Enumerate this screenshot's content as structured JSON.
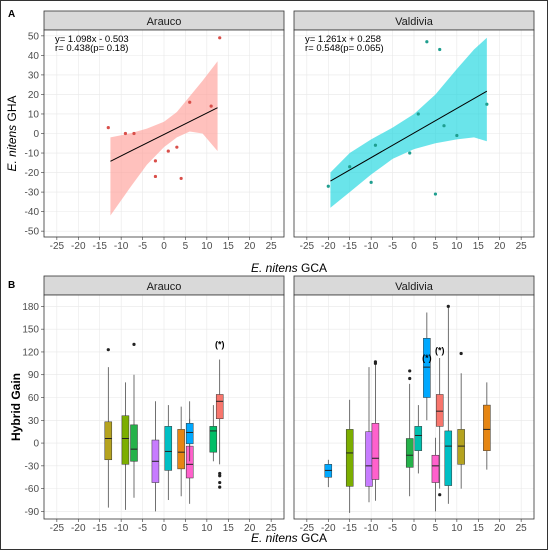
{
  "figure": {
    "panel_labels": [
      "A",
      "B"
    ]
  },
  "colors": {
    "strip_bg": "#d9d9d9",
    "panel_border": "#333333",
    "grid": "#e8e8e8",
    "ribbon_arauco": "#ff9f9a",
    "ribbon_valdivia": "#1ad6df",
    "pt_arauco": "#d94f4a",
    "pt_valdivia": "#1f9e8f"
  },
  "chart_data": [
    {
      "type": "scatter",
      "panel": "A",
      "xlabel_italic": "E. nitens",
      "xlabel_rest": " GCA",
      "ylabel_italic": "E. nitens",
      "ylabel_rest": " GHA",
      "xlim": [
        -28,
        28
      ],
      "ylim": [
        -53,
        53
      ],
      "xticks": [
        -25,
        -20,
        -15,
        -10,
        -5,
        0,
        5,
        10,
        15,
        20,
        25
      ],
      "yticks": [
        -50,
        -40,
        -30,
        -20,
        -10,
        0,
        10,
        20,
        30,
        40,
        50
      ],
      "facets": [
        {
          "name": "Arauco",
          "eq1": "y= 1.098x - 0.503",
          "eq2": "r= 0.438(p= 0.18)",
          "slope": 1.098,
          "intercept": -0.503,
          "xrange": [
            -12.5,
            12.5
          ],
          "band_upper": [
            [
              -12.5,
              -2
            ],
            [
              -8,
              0
            ],
            [
              -4,
              2.5
            ],
            [
              0,
              6
            ],
            [
              3,
              11
            ],
            [
              6,
              19
            ],
            [
              9,
              27
            ],
            [
              12.5,
              37
            ]
          ],
          "band_lower": [
            [
              -12.5,
              -42
            ],
            [
              -8,
              -28
            ],
            [
              -4,
              -16
            ],
            [
              0,
              -7
            ],
            [
              3,
              -2
            ],
            [
              6,
              1
            ],
            [
              9,
              0
            ],
            [
              12.5,
              -9
            ]
          ],
          "points": [
            [
              -13,
              3
            ],
            [
              -9,
              0
            ],
            [
              -7,
              0
            ],
            [
              -2,
              -14
            ],
            [
              -2,
              -22
            ],
            [
              1,
              -9
            ],
            [
              3,
              -7
            ],
            [
              4,
              -23
            ],
            [
              6,
              16
            ],
            [
              11,
              14
            ],
            [
              13,
              49
            ]
          ]
        },
        {
          "name": "Valdivia",
          "eq1": "y= 1.261x + 0.258",
          "eq2": "r= 0.548(p= 0.065)",
          "slope": 1.261,
          "intercept": 0.258,
          "xrange": [
            -19.5,
            17
          ],
          "band_upper": [
            [
              -19.5,
              -20
            ],
            [
              -15,
              -10
            ],
            [
              -10,
              -3
            ],
            [
              -5,
              3
            ],
            [
              0,
              10
            ],
            [
              5,
              20
            ],
            [
              10,
              33
            ],
            [
              14,
              43
            ],
            [
              17,
              49
            ]
          ],
          "band_lower": [
            [
              -19.5,
              -38
            ],
            [
              -15,
              -30
            ],
            [
              -10,
              -21
            ],
            [
              -5,
              -13
            ],
            [
              0,
              -8
            ],
            [
              5,
              -5
            ],
            [
              10,
              -3
            ],
            [
              14,
              -2
            ],
            [
              17,
              -4
            ]
          ],
          "points": [
            [
              -20,
              -27
            ],
            [
              -15,
              -17
            ],
            [
              -10,
              -25
            ],
            [
              -9,
              -6
            ],
            [
              -1,
              -10
            ],
            [
              1,
              10
            ],
            [
              3,
              47
            ],
            [
              5,
              -31
            ],
            [
              6,
              43
            ],
            [
              7,
              4
            ],
            [
              10,
              -1
            ],
            [
              17,
              15
            ]
          ]
        }
      ]
    },
    {
      "type": "box",
      "panel": "B",
      "ylabel": "Hybrid Gain",
      "xlabel_italic": "E. nitens",
      "xlabel_rest": " GCA",
      "xlim": [
        -28,
        28
      ],
      "ylim": [
        -100,
        195
      ],
      "xticks": [
        -25,
        -20,
        -15,
        -10,
        -5,
        0,
        5,
        10,
        15,
        20,
        25
      ],
      "yticks": [
        -90,
        -60,
        -30,
        0,
        30,
        60,
        90,
        120,
        150,
        180
      ],
      "facets": [
        {
          "name": "Arauco",
          "annotations": [
            {
              "x": 13,
              "y": 126,
              "text": "(*)"
            }
          ],
          "boxes": [
            {
              "x": -13,
              "color": "#b5a31f",
              "q1": -22,
              "med": 6,
              "q3": 28,
              "lo": -85,
              "hi": 100,
              "out": [
                123
              ]
            },
            {
              "x": -9,
              "color": "#7cae00",
              "q1": -28,
              "med": 6,
              "q3": 36,
              "lo": -88,
              "hi": 80,
              "out": []
            },
            {
              "x": -7,
              "color": "#25b24a",
              "q1": -24,
              "med": -8,
              "q3": 24,
              "lo": -72,
              "hi": 90,
              "out": [
                130
              ]
            },
            {
              "x": -2,
              "color": "#c77cff",
              "q1": -52,
              "med": -24,
              "q3": 4,
              "lo": -90,
              "hi": 55,
              "out": []
            },
            {
              "x": 1,
              "color": "#00bfc4",
              "q1": -36,
              "med": -11,
              "q3": 22,
              "lo": -75,
              "hi": 50,
              "out": []
            },
            {
              "x": 4,
              "color": "#e68613",
              "q1": -34,
              "med": -12,
              "q3": 18,
              "lo": -70,
              "hi": 48,
              "out": []
            },
            {
              "x": 6,
              "color": "#ff61cc",
              "q1": -46,
              "med": -28,
              "q3": -4,
              "lo": -80,
              "hi": 32,
              "out": []
            },
            {
              "x": 6,
              "color": "#00a9ff",
              "q1": -1,
              "med": 14,
              "q3": 26,
              "lo": -24,
              "hi": 55,
              "out": []
            },
            {
              "x": 11.5,
              "color": "#00be67",
              "q1": -12,
              "med": 16,
              "q3": 22,
              "lo": -24,
              "hi": 50,
              "out": []
            },
            {
              "x": 13,
              "color": "#f8766d",
              "q1": 32,
              "med": 55,
              "q3": 64,
              "lo": -28,
              "hi": 110,
              "out": [
                -40,
                -43,
                -52,
                -58
              ]
            }
          ]
        },
        {
          "name": "Valdivia",
          "annotations": [
            {
              "x": 3,
              "y": 108,
              "text": "(*)"
            },
            {
              "x": 6,
              "y": 118,
              "text": "(*)"
            }
          ],
          "boxes": [
            {
              "x": -20,
              "color": "#00a9ff",
              "q1": -45,
              "med": -36,
              "q3": -28,
              "lo": -58,
              "hi": -22,
              "out": []
            },
            {
              "x": -15,
              "color": "#7cae00",
              "q1": -57,
              "med": -13,
              "q3": 18,
              "lo": -92,
              "hi": 57,
              "out": []
            },
            {
              "x": -10.5,
              "color": "#c77cff",
              "q1": -57,
              "med": -30,
              "q3": 15,
              "lo": -78,
              "hi": 100,
              "out": []
            },
            {
              "x": -9,
              "color": "#ff61cc",
              "q1": -48,
              "med": -20,
              "q3": 26,
              "lo": -76,
              "hi": 103,
              "out": [
                105,
                107
              ]
            },
            {
              "x": -1,
              "color": "#25b24a",
              "q1": -32,
              "med": -16,
              "q3": 6,
              "lo": -70,
              "hi": 78,
              "out": [
                85,
                95
              ]
            },
            {
              "x": 1,
              "color": "#00c0af",
              "q1": -10,
              "med": 10,
              "q3": 22,
              "lo": -40,
              "hi": 50,
              "out": []
            },
            {
              "x": 3,
              "color": "#00a9ff",
              "q1": 60,
              "med": 100,
              "q3": 138,
              "lo": 30,
              "hi": 172,
              "out": []
            },
            {
              "x": 5,
              "color": "#ff61cc",
              "q1": -52,
              "med": -30,
              "q3": -16,
              "lo": -90,
              "hi": 7,
              "out": []
            },
            {
              "x": 6,
              "color": "#f8766d",
              "q1": 22,
              "med": 42,
              "q3": 64,
              "lo": -60,
              "hi": 112,
              "out": [
                -68
              ]
            },
            {
              "x": 8,
              "color": "#00bfc4",
              "q1": -56,
              "med": -4,
              "q3": 16,
              "lo": -80,
              "hi": 178,
              "out": [
                180
              ]
            },
            {
              "x": 11,
              "color": "#b5a31f",
              "q1": -28,
              "med": -4,
              "q3": 18,
              "lo": -60,
              "hi": 92,
              "out": [
                118
              ]
            },
            {
              "x": 17,
              "color": "#e68613",
              "q1": -10,
              "med": 18,
              "q3": 50,
              "lo": -35,
              "hi": 80,
              "out": []
            }
          ]
        }
      ]
    }
  ]
}
